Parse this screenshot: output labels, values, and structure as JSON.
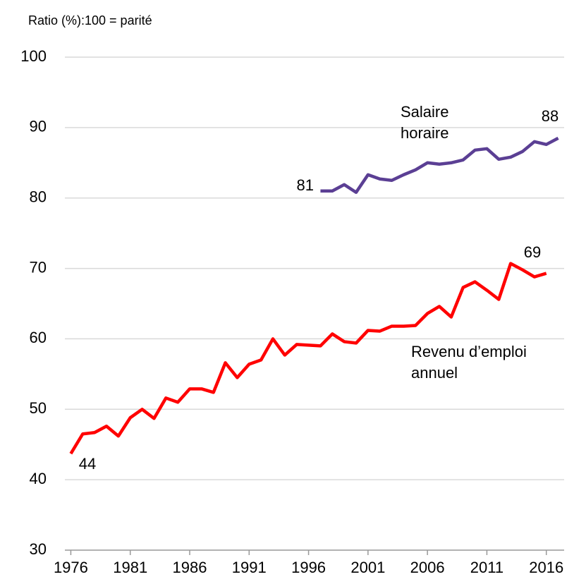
{
  "chart_data": {
    "type": "line",
    "y_label": "Ratio (%):100 = parité",
    "x": [
      1976,
      1977,
      1978,
      1979,
      1980,
      1981,
      1982,
      1983,
      1984,
      1985,
      1986,
      1987,
      1988,
      1989,
      1990,
      1991,
      1992,
      1993,
      1994,
      1995,
      1996,
      1997,
      1998,
      1999,
      2000,
      2001,
      2002,
      2003,
      2004,
      2005,
      2006,
      2007,
      2008,
      2009,
      2010,
      2011,
      2012,
      2013,
      2014,
      2015,
      2016,
      2017
    ],
    "series": [
      {
        "name": "Salaire horaire",
        "color": "#5b3f94",
        "values": [
          null,
          null,
          null,
          null,
          null,
          null,
          null,
          null,
          null,
          null,
          null,
          null,
          null,
          null,
          null,
          null,
          null,
          null,
          null,
          null,
          null,
          81.0,
          81.0,
          81.9,
          80.8,
          83.3,
          82.7,
          82.5,
          83.3,
          84.0,
          85.0,
          84.8,
          85.0,
          85.4,
          86.8,
          87.0,
          85.5,
          85.8,
          86.6,
          88.0,
          87.6,
          88.5
        ]
      },
      {
        "name": "Revenu d’emploi annuel",
        "color": "#ff0000",
        "values": [
          43.7,
          46.5,
          46.7,
          47.6,
          46.2,
          48.8,
          50.0,
          48.7,
          51.6,
          51.0,
          52.9,
          52.9,
          52.4,
          56.6,
          54.5,
          56.4,
          57.0,
          60.0,
          57.7,
          59.2,
          59.1,
          59.0,
          60.7,
          59.6,
          59.4,
          61.2,
          61.1,
          61.8,
          61.8,
          61.9,
          63.6,
          64.6,
          63.1,
          67.3,
          68.1,
          66.9,
          65.6,
          70.7,
          69.8,
          68.8,
          69.3,
          null
        ]
      }
    ],
    "annotations": [
      "81",
      "88",
      "69",
      "44"
    ],
    "xlim": [
      1975.5,
      2017.5
    ],
    "xticks": [
      1976,
      1981,
      1986,
      1991,
      1996,
      2001,
      2006,
      2011,
      2016
    ],
    "ylim": [
      30,
      100
    ],
    "yticks": [
      30,
      40,
      50,
      60,
      70,
      80,
      90,
      100
    ],
    "grid": true
  }
}
